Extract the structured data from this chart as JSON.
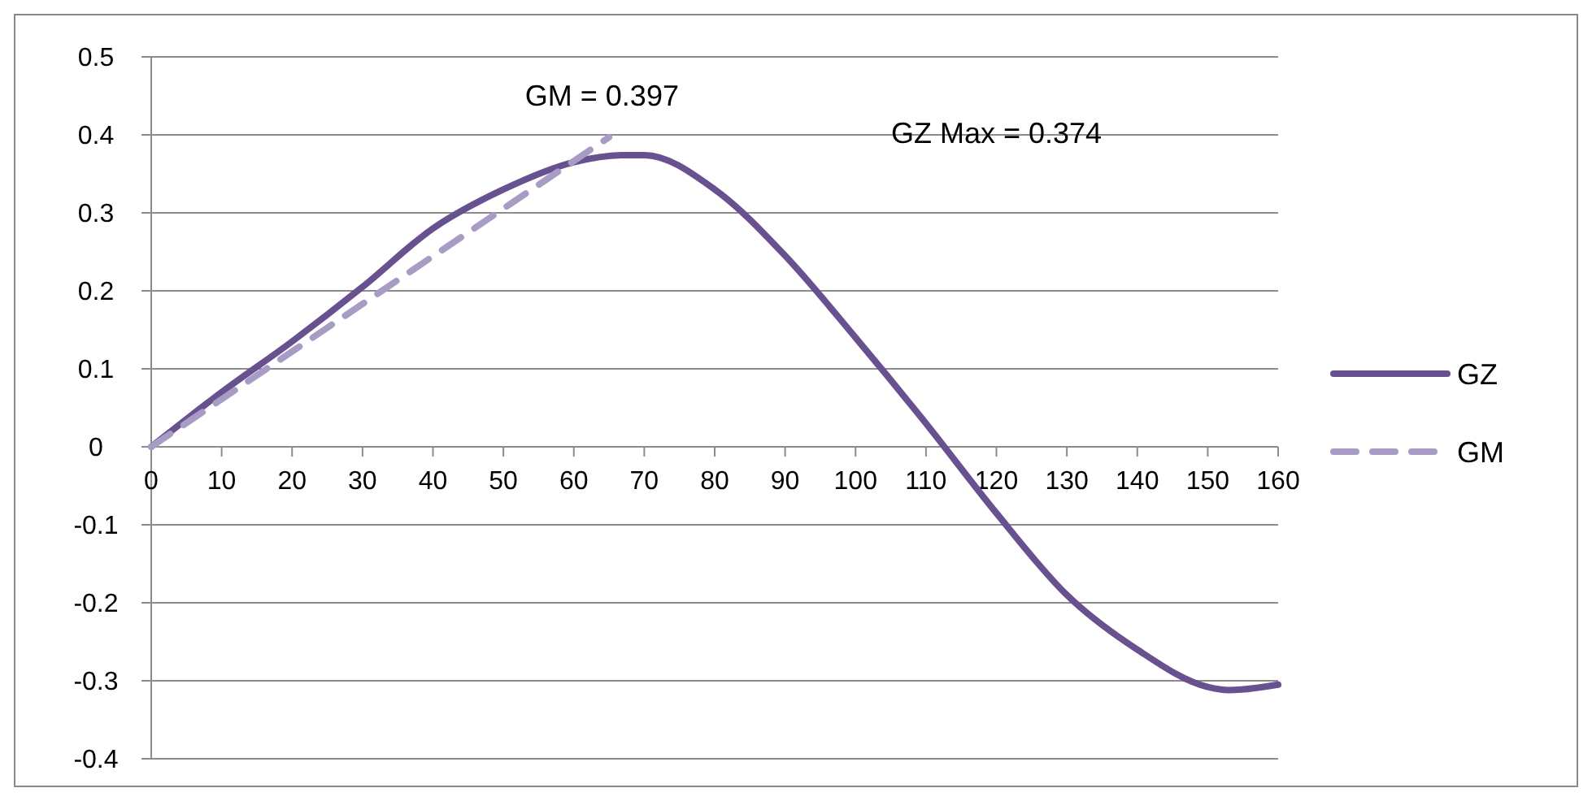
{
  "chart_data": {
    "type": "line",
    "x": [
      0,
      10,
      20,
      30,
      40,
      50,
      60,
      67,
      70,
      80,
      90,
      100,
      110,
      120,
      130,
      140,
      150,
      153,
      160
    ],
    "series": [
      {
        "name": "GZ",
        "color": "#68518f",
        "line_style": "solid",
        "values": [
          0,
          0.07,
          0.135,
          0.205,
          0.28,
          0.33,
          0.365,
          0.374,
          0.374,
          0.33,
          0.245,
          0.14,
          0.03,
          -0.085,
          -0.19,
          -0.26,
          -0.308,
          -0.312,
          -0.305
        ]
      },
      {
        "name": "GM",
        "color": "#a89cc4",
        "line_style": "dashed",
        "x": [
          0,
          65
        ],
        "values": [
          0,
          0.397
        ]
      }
    ],
    "xlim": [
      0,
      160
    ],
    "xticks": [
      0,
      10,
      20,
      30,
      40,
      50,
      60,
      70,
      80,
      90,
      100,
      110,
      120,
      130,
      140,
      150,
      160
    ],
    "ylim": [
      -0.4,
      0.5
    ],
    "yticks": [
      -0.4,
      -0.3,
      -0.2,
      -0.1,
      0,
      0.1,
      0.2,
      0.3,
      0.4,
      0.5
    ],
    "grid": "y",
    "legend": "right",
    "annotations": [
      "GM = 0.397",
      "GZ Max = 0.374"
    ]
  }
}
